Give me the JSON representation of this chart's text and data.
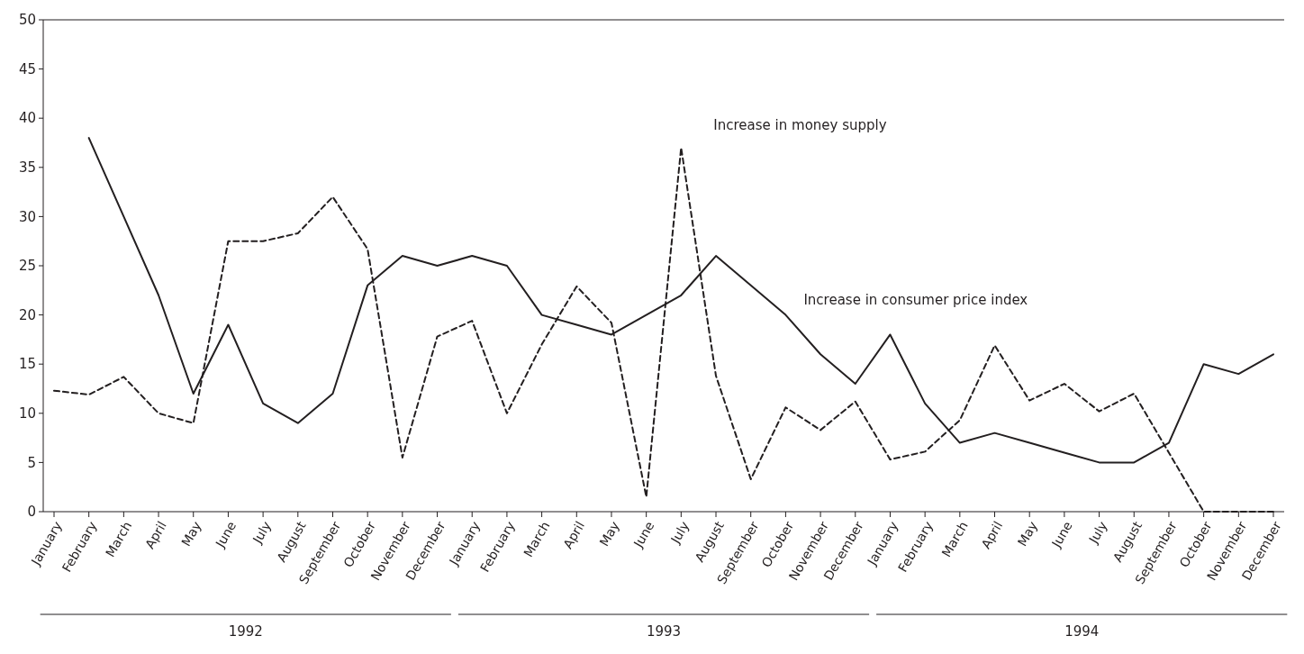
{
  "chart_data": {
    "type": "line",
    "categories": [
      "January",
      "February",
      "March",
      "April",
      "May",
      "June",
      "July",
      "August",
      "September",
      "October",
      "November",
      "December",
      "January",
      "February",
      "March",
      "April",
      "May",
      "June",
      "July",
      "August",
      "September",
      "October",
      "November",
      "December",
      "January",
      "February",
      "March",
      "April",
      "May",
      "June",
      "July",
      "August",
      "September",
      "October",
      "November",
      "December"
    ],
    "series": [
      {
        "name": "Increase in consumer price index",
        "color": "#231f20",
        "line_style": "solid",
        "values": [
          null,
          38,
          30,
          22,
          12,
          19,
          11,
          9,
          12,
          23,
          26,
          25,
          26,
          25,
          20,
          19,
          18,
          20,
          22,
          26,
          23,
          20,
          16,
          13,
          18,
          11,
          7,
          8,
          7,
          6,
          5,
          5,
          7,
          15,
          14,
          16
        ]
      },
      {
        "name": "Increase in money supply",
        "color": "#231f20",
        "line_style": "dashed",
        "values": [
          12.3,
          11.9,
          13.7,
          10,
          9,
          27.5,
          27.5,
          28.3,
          32,
          26.7,
          5.5,
          17.8,
          19.4,
          10,
          17,
          22.9,
          19.2,
          1.5,
          37,
          13.8,
          3.3,
          10.6,
          8.3,
          11.2,
          5.3,
          6.1,
          9.3,
          16.9,
          11.3,
          13,
          10.2,
          12,
          6,
          0,
          0,
          0
        ]
      }
    ],
    "ylim": [
      0,
      50
    ],
    "yticks": [
      0,
      5,
      10,
      15,
      20,
      25,
      30,
      35,
      40,
      45,
      50
    ],
    "grid": false,
    "marker": "none",
    "annotations": [
      "1992",
      "1993",
      "1994"
    ]
  }
}
